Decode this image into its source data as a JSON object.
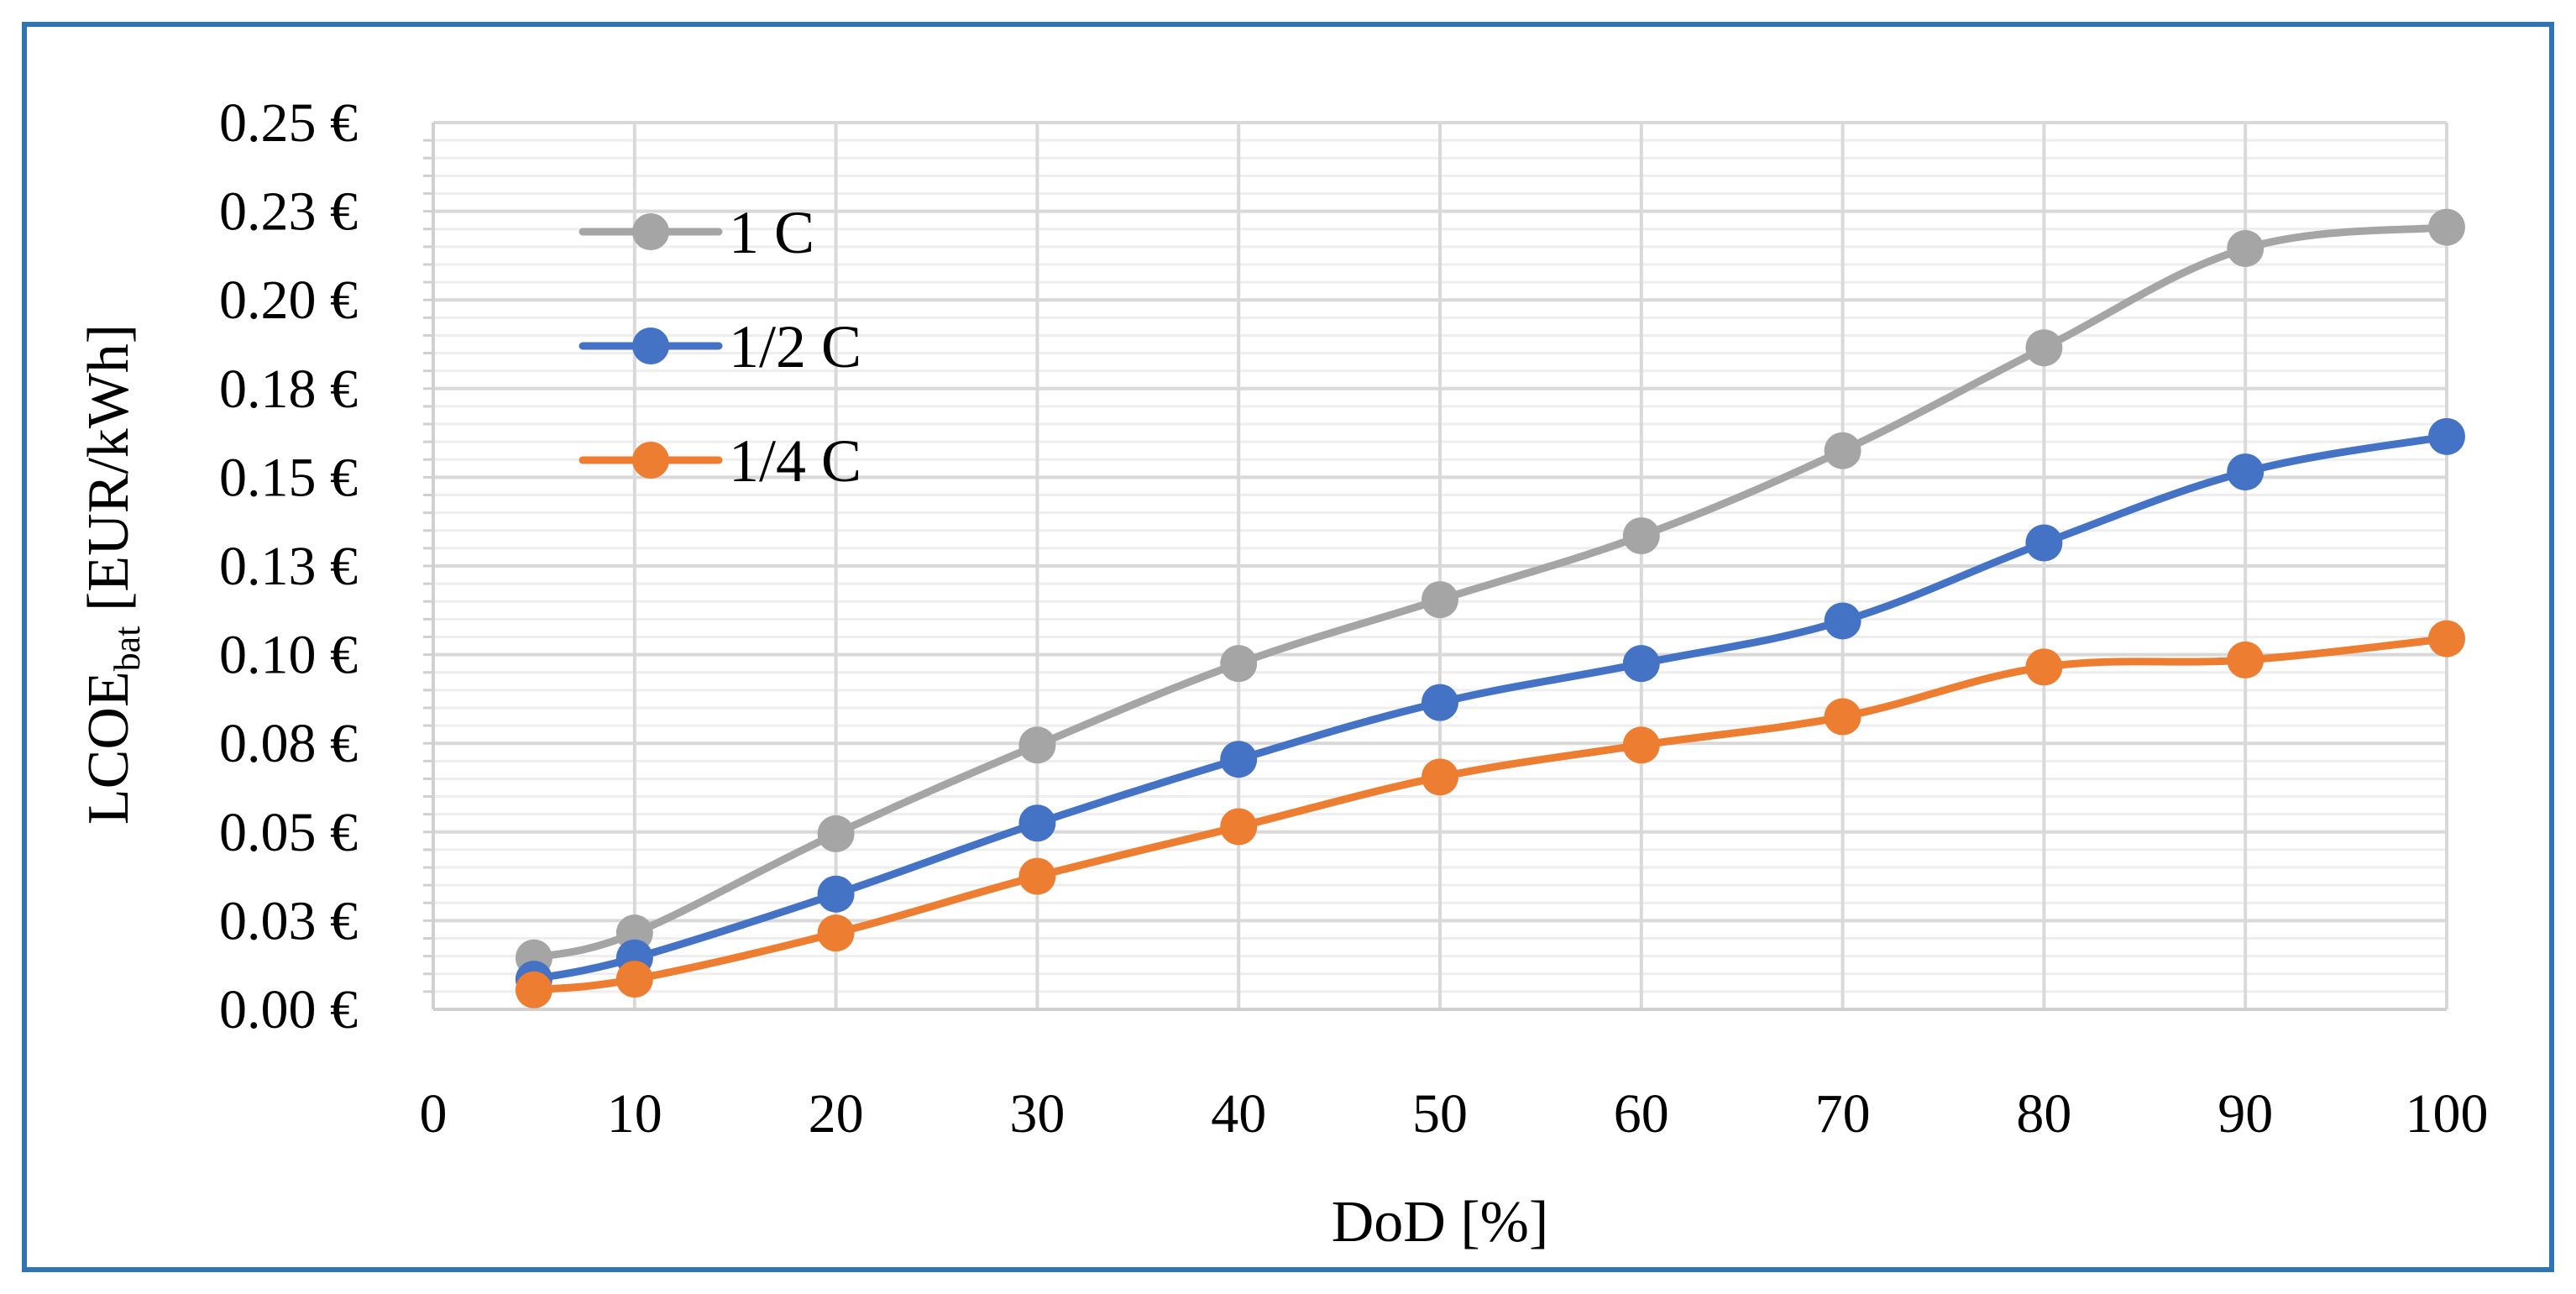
{
  "chart_data": {
    "type": "line",
    "title": "",
    "xlabel": "DoD [%]",
    "ylabel_main": "LCOE",
    "ylabel_sub": "bat",
    "ylabel_rest": " [EUR/kWh]",
    "xlim": [
      0,
      100
    ],
    "ylim": [
      0,
      0.25
    ],
    "x_ticks": [
      0,
      10,
      20,
      30,
      40,
      50,
      60,
      70,
      80,
      90,
      100
    ],
    "x_tick_labels": [
      "0",
      "10",
      "20",
      "30",
      "40",
      "50",
      "60",
      "70",
      "80",
      "90",
      "100"
    ],
    "y_ticks": [
      0,
      0.025,
      0.05,
      0.075,
      0.1,
      0.125,
      0.15,
      0.175,
      0.2,
      0.225,
      0.25
    ],
    "y_tick_labels": [
      "0.00 €",
      "0.03 €",
      "0.05 €",
      "0.08 €",
      "0.10 €",
      "0.13 €",
      "0.15 €",
      "0.18 €",
      "0.20 €",
      "0.23 €",
      "0.25 €"
    ],
    "y_minor_step": 0.005,
    "grid": true,
    "legend_position": "top-left",
    "x": [
      5,
      10,
      20,
      30,
      40,
      50,
      60,
      70,
      80,
      90,
      100
    ],
    "series": [
      {
        "name": "1 C",
        "color": "#a5a5a5",
        "values": [
          0.0145,
          0.0215,
          0.0495,
          0.0745,
          0.0975,
          0.1155,
          0.1335,
          0.1575,
          0.1865,
          0.2145,
          0.2205
        ]
      },
      {
        "name": "1/2 C",
        "color": "#4472c4",
        "values": [
          0.0085,
          0.0145,
          0.0325,
          0.0525,
          0.0705,
          0.0865,
          0.0975,
          0.1095,
          0.1315,
          0.1515,
          0.1615
        ]
      },
      {
        "name": "1/4 C",
        "color": "#ed7d31",
        "values": [
          0.0055,
          0.0085,
          0.0215,
          0.0375,
          0.0515,
          0.0655,
          0.0745,
          0.0825,
          0.0965,
          0.0985,
          0.1045
        ]
      }
    ]
  },
  "frame": {
    "border_color": "#2f74b5"
  }
}
